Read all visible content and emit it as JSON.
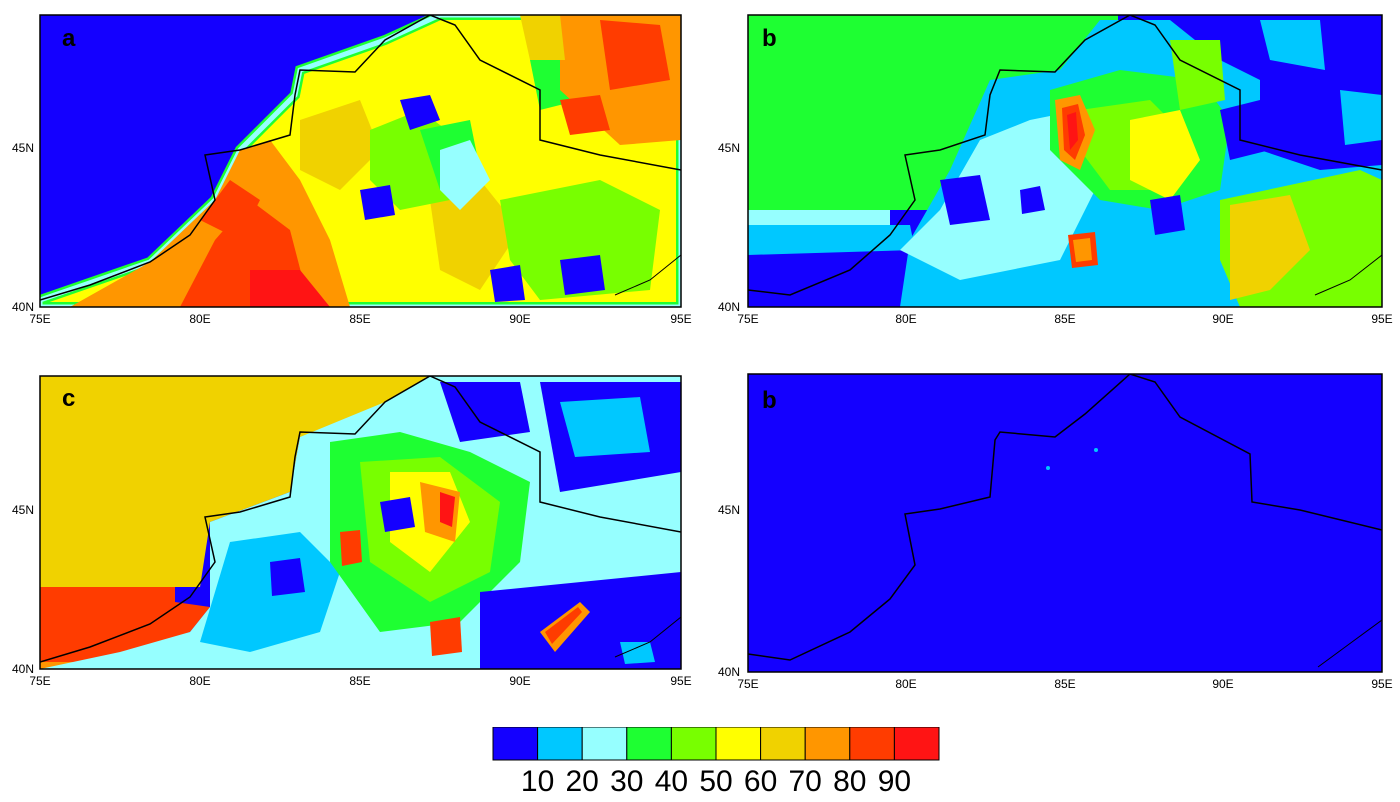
{
  "panels": [
    {
      "letter": "a",
      "xticks": [
        "75E",
        "80E",
        "85E",
        "90E",
        "95E"
      ],
      "yticks": [
        "40N",
        "45N"
      ],
      "background": "#1400ff"
    },
    {
      "letter": "b",
      "xticks": [
        "75E",
        "80E",
        "85E",
        "90E",
        "95E"
      ],
      "yticks": [
        "40N",
        "45N"
      ],
      "background": "#1400ff"
    },
    {
      "letter": "c",
      "xticks": [
        "75E",
        "80E",
        "85E",
        "90E",
        "95E"
      ],
      "yticks": [
        "40N",
        "45N"
      ],
      "background": "#1400ff"
    },
    {
      "letter": "b",
      "xticks": [
        "75E",
        "80E",
        "85E",
        "90E",
        "95E"
      ],
      "yticks": [
        "40N",
        "45N"
      ],
      "background": "#1400ff"
    }
  ],
  "colorbar": {
    "colors": [
      "#1400ff",
      "#00c8ff",
      "#96ffff",
      "#1eff32",
      "#78ff00",
      "#ffff00",
      "#f0d200",
      "#ff9600",
      "#ff3c00",
      "#ff1414"
    ],
    "labels": [
      "10",
      "20",
      "30",
      "40",
      "50",
      "60",
      "70",
      "80",
      "90"
    ]
  },
  "palette": {
    "blue": "#1400ff",
    "cyan": "#00c8ff",
    "lightcyan": "#96ffff",
    "green": "#1eff32",
    "lightgreen": "#78ff00",
    "yellow": "#ffff00",
    "gold": "#f0d200",
    "orange": "#ff9600",
    "red": "#ff3c00",
    "darkred": "#ff1414"
  }
}
